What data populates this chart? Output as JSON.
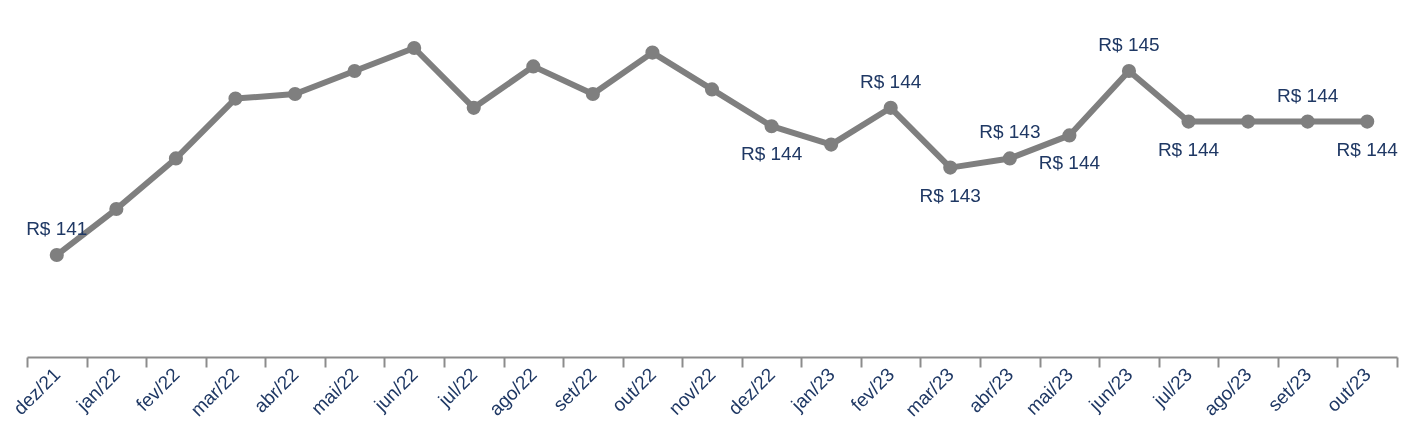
{
  "chart_data": {
    "type": "line",
    "categories": [
      "dez/21",
      "jan/22",
      "fev/22",
      "mar/22",
      "abr/22",
      "mai/22",
      "jun/22",
      "jul/22",
      "ago/22",
      "set/22",
      "out/22",
      "nov/22",
      "dez/22",
      "jan/23",
      "fev/23",
      "mar/23",
      "abr/23",
      "mai/23",
      "jun/23",
      "jul/23",
      "ago/23",
      "set/23",
      "out/23"
    ],
    "series": [
      {
        "color": "#7f7f7f",
        "values": [
          141.0,
          142.0,
          143.1,
          144.4,
          144.5,
          145.0,
          145.5,
          144.2,
          145.1,
          144.5,
          145.4,
          144.6,
          143.8,
          143.4,
          144.2,
          142.9,
          143.1,
          143.6,
          145.0,
          143.9,
          143.9,
          143.9,
          143.9
        ],
        "value_labels": [
          "R$ 141",
          null,
          null,
          null,
          null,
          null,
          null,
          null,
          null,
          null,
          null,
          null,
          "R$ 144",
          null,
          "R$ 144",
          "R$ 143",
          "R$ 143",
          "R$ 144",
          "R$ 145",
          "R$ 144",
          null,
          "R$ 144",
          "R$ 144"
        ]
      }
    ],
    "marker": "circle"
  }
}
